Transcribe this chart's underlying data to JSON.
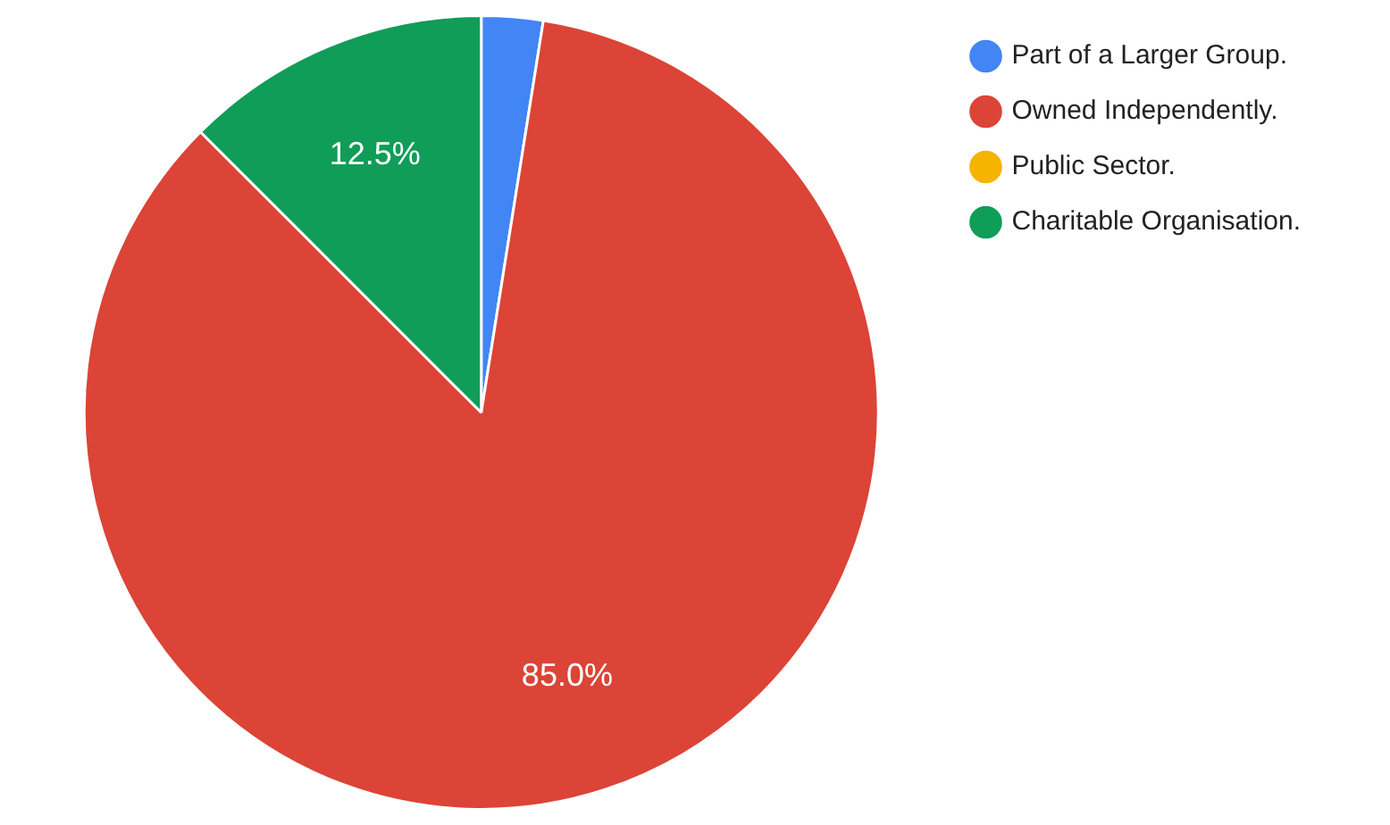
{
  "chart_data": {
    "type": "pie",
    "categories": [
      "Part of a Larger Group.",
      "Owned Independently.",
      "Public Sector.",
      "Charitable Organisation."
    ],
    "values": [
      2.5,
      85.0,
      0,
      12.5
    ],
    "colors": [
      "#4285f4",
      "#db4437",
      "#f4b400",
      "#0f9d58"
    ],
    "value_labels": [
      null,
      "85.0%",
      null,
      "12.5%"
    ],
    "legend": "top right"
  }
}
